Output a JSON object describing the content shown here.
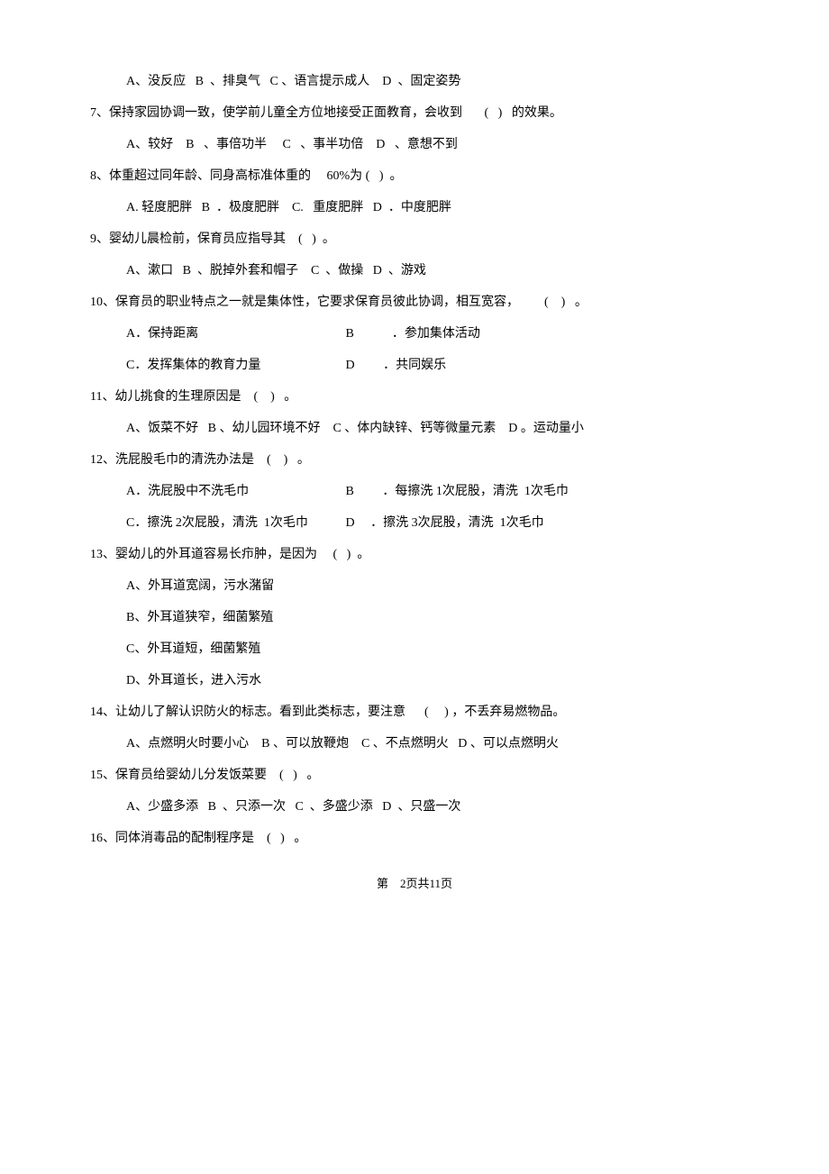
{
  "q6_options": "A、没反应   B  、排臭气   C 、语言提示成人    D  、固定姿势",
  "q7_stem": "7、保持家园协调一致，使学前儿童全方位地接受正面教育，会收到       (   )   的效果。",
  "q7_options": "A、较好    B   、事倍功半     C   、事半功倍    D   、意想不到",
  "q8_stem": "8、体重超过同年龄、同身高标准体重的     60%为 (   )  。",
  "q8_options": "A. 轻度肥胖   B  ．极度肥胖    C.   重度肥胖   D  ．中度肥胖",
  "q9_stem": "9、婴幼儿晨检前，保育员应指导其    (   )  。",
  "q9_options": "A、漱口   B  、脱掉外套和帽子    C  、做操   D  、游戏",
  "q10_stem": "10、保育员的职业特点之一就是集体性，它要求保育员彼此协调，相互宽容，        (    )   。",
  "q10_a": "A．保持距离",
  "q10_b": "B            ．参加集体活动",
  "q10_c": "C．发挥集体的教育力量",
  "q10_d": "D         ．共同娱乐",
  "q11_stem": "11、幼儿挑食的生理原因是    (    )   。",
  "q11_options": "A、饭菜不好   B 、幼儿园环境不好    C 、体内缺锌、钙等微量元素    D 。运动量小",
  "q12_stem": "12、洗屁股毛巾的清洗办法是    (    )   。",
  "q12_a": "A．洗屁股中不洗毛巾",
  "q12_b": "B         ．每擦洗 1次屁股，清洗  1次毛巾",
  "q12_c": "C．擦洗 2次屁股，清洗  1次毛巾",
  "q12_d": "D     ．擦洗 3次屁股，清洗  1次毛巾",
  "q13_stem": "13、婴幼儿的外耳道容易长疖肿，是因为     (   )  。",
  "q13_a": "A、外耳道宽阔，污水潴留",
  "q13_b": "B、外耳道狭窄，细菌繁殖",
  "q13_c": "C、外耳道短，细菌繁殖",
  "q13_d": "D、外耳道长，进入污水",
  "q14_stem": "14、让幼儿了解认识防火的标志。看到此类标志，要注意      (     ) ，不丢弃易燃物品。",
  "q14_options": "A、点燃明火时要小心    B 、可以放鞭炮    C 、不点燃明火   D 、可以点燃明火",
  "q15_stem": "15、保育员给婴幼儿分发饭菜要    (   )   。",
  "q15_options": "A、少盛多添   B  、只添一次   C  、多盛少添   D  、只盛一次",
  "q16_stem": "16、同体消毒品的配制程序是    (   )   。",
  "footer": "第    2页共11页"
}
